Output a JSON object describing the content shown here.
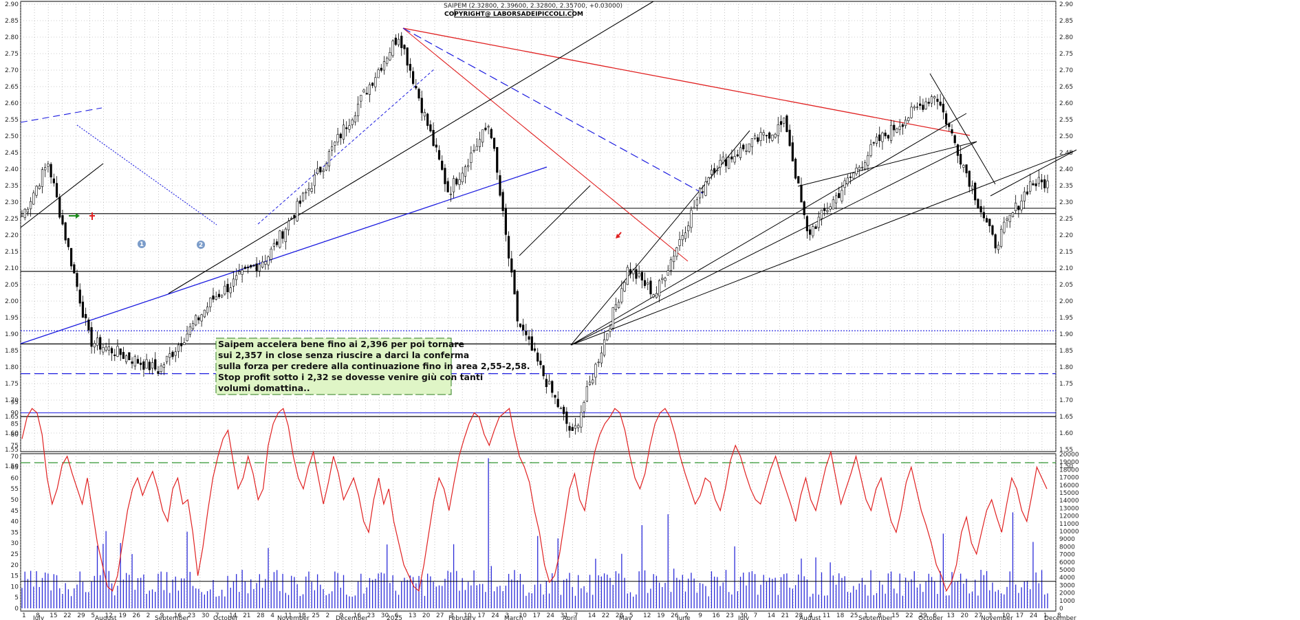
{
  "header": {
    "summary": "SAIPEM (2.32800, 2.39600, 2.32800, 2.35700, +0.03000)",
    "copyright": "COPYRIGHT@ LABORSADEIPICCOLI.COM"
  },
  "annotation": {
    "lines": [
      "Saipem accelera bene fino ai 2,396 per poi tornare",
      "sui 2,357 in close senza riuscire a darci la conferma",
      "sulla forza per credere alla continuazione fino in area 2,55-2,58.",
      "Stop profit sotto i 2,32 se dovesse venire giù con tanti",
      "volumi domattina.."
    ]
  },
  "markers": {
    "one": "1",
    "two": "2"
  },
  "colors": {
    "candle": "#000000",
    "trend_red": "#e02020",
    "trend_blue": "#1a1adf",
    "trend_black": "#000000",
    "oscillator": "#e02020",
    "volume": "#2a2ad8",
    "note_bg": "#dff5c6",
    "note_border": "#2e7d1e",
    "green_dash": "#1a8a1a",
    "grid": "#9a9a9a"
  },
  "chart_data": [
    {
      "type": "candlestick",
      "title": "SAIPEM",
      "ylim": [
        1.45,
        2.9
      ],
      "y_ticks": [
        "2.90",
        "2.85",
        "2.80",
        "2.75",
        "2.70",
        "2.65",
        "2.60",
        "2.55",
        "2.50",
        "2.45",
        "2.40",
        "2.35",
        "2.30",
        "2.25",
        "2.20",
        "2.15",
        "2.10",
        "2.05",
        "2.00",
        "1.95",
        "1.90",
        "1.85",
        "1.80",
        "1.75",
        "1.70",
        "1.65",
        "1.60",
        "1.55",
        "1.50"
      ],
      "x_tick_labels": [
        "1",
        "8",
        "15",
        "22",
        "29",
        "5",
        "12",
        "19",
        "26",
        "2",
        "9",
        "16",
        "23",
        "30",
        "7",
        "14",
        "21",
        "28",
        "4",
        "11",
        "18",
        "25",
        "2",
        "9",
        "16",
        "23",
        "30",
        "6",
        "13",
        "20",
        "27",
        "3",
        "10",
        "17",
        "24",
        "3",
        "10",
        "17",
        "24",
        "31",
        "7",
        "14",
        "22",
        "28",
        "5",
        "12",
        "19",
        "26",
        "2",
        "9",
        "16",
        "23",
        "30",
        "7",
        "14",
        "21",
        "28",
        "4",
        "11",
        "18",
        "25",
        "1",
        "8",
        "15",
        "22",
        "29",
        "6",
        "13",
        "20",
        "27",
        "3",
        "10",
        "17",
        "24",
        "1",
        "8"
      ],
      "month_labels": [
        "July",
        "August",
        "September",
        "October",
        "November",
        "December",
        "2025",
        "February",
        "March",
        "April",
        "May",
        "June",
        "July",
        "August",
        "September",
        "October",
        "November",
        "December"
      ],
      "key_points": [
        {
          "date": "2024-07-01",
          "value": 2.25
        },
        {
          "date": "2024-07-15",
          "value": 2.42
        },
        {
          "date": "2024-08-05",
          "value": 1.88
        },
        {
          "date": "2024-09-09",
          "value": 1.79
        },
        {
          "date": "2024-10-07",
          "value": 2.01
        },
        {
          "date": "2024-11-04",
          "value": 2.14
        },
        {
          "date": "2024-12-02",
          "value": 2.42
        },
        {
          "date": "2025-01-09",
          "value": 2.81
        },
        {
          "date": "2025-02-03",
          "value": 2.33
        },
        {
          "date": "2025-02-24",
          "value": 2.54
        },
        {
          "date": "2025-03-10",
          "value": 1.94
        },
        {
          "date": "2025-04-07",
          "value": 1.59
        },
        {
          "date": "2025-05-05",
          "value": 2.1
        },
        {
          "date": "2025-05-19",
          "value": 2.02
        },
        {
          "date": "2025-06-16",
          "value": 2.4
        },
        {
          "date": "2025-07-24",
          "value": 2.54
        },
        {
          "date": "2025-08-04",
          "value": 2.2
        },
        {
          "date": "2025-09-08",
          "value": 2.48
        },
        {
          "date": "2025-10-08",
          "value": 2.63
        },
        {
          "date": "2025-11-07",
          "value": 2.17
        },
        {
          "date": "2025-11-25",
          "value": 2.357
        }
      ],
      "last_bar": {
        "open": 2.328,
        "high": 2.396,
        "low": 2.328,
        "close": 2.357,
        "change": 0.03
      },
      "horizontal_levels": [
        {
          "value": 2.265,
          "style": "solid",
          "color": "black"
        },
        {
          "value": 2.09,
          "style": "solid",
          "color": "black"
        },
        {
          "value": 1.91,
          "style": "dotted",
          "color": "blue"
        },
        {
          "value": 1.87,
          "style": "solid",
          "color": "black"
        },
        {
          "value": 1.78,
          "style": "dashed",
          "color": "blue"
        },
        {
          "value": 1.65,
          "style": "solid",
          "color": "black"
        },
        {
          "value": 1.51,
          "style": "dashed",
          "color": "green"
        }
      ]
    },
    {
      "type": "line",
      "title": "Oscillator",
      "ylim": [
        0,
        100
      ],
      "y_ticks": [
        "95",
        "90",
        "85",
        "80",
        "75",
        "70",
        "65",
        "60",
        "55",
        "50",
        "45",
        "40",
        "35",
        "30",
        "25",
        "20",
        "15",
        "10",
        "5",
        "0"
      ],
      "levels": [
        90,
        15
      ],
      "series": [
        {
          "values": [
            78,
            88,
            92,
            90,
            80,
            60,
            48,
            55,
            66,
            70,
            62,
            55,
            48,
            60,
            45,
            30,
            20,
            10,
            8,
            15,
            30,
            45,
            55,
            60,
            52,
            58,
            63,
            55,
            45,
            40,
            55,
            60,
            48,
            50,
            35,
            15,
            28,
            45,
            60,
            70,
            78,
            82,
            68,
            55,
            60,
            70,
            62,
            50,
            55,
            75,
            85,
            90,
            92,
            84,
            70,
            60,
            55,
            65,
            72,
            60,
            48,
            58,
            70,
            62,
            50,
            55,
            60,
            52,
            40,
            35,
            50,
            60,
            48,
            55,
            40,
            30,
            20,
            15,
            10,
            8,
            20,
            35,
            50,
            60,
            55,
            45,
            58,
            70,
            78,
            85,
            90,
            88,
            80,
            75,
            82,
            88,
            90,
            92,
            80,
            70,
            65,
            58,
            45,
            35,
            20,
            12,
            15,
            25,
            40,
            55,
            62,
            50,
            45,
            60,
            72,
            80,
            85,
            88,
            92,
            90,
            82,
            70,
            60,
            55,
            62,
            75,
            85,
            90,
            92,
            88,
            80,
            70,
            62,
            55,
            48,
            52,
            60,
            58,
            50,
            45,
            55,
            68,
            75,
            70,
            62,
            55,
            50,
            48,
            56,
            64,
            70,
            62,
            55,
            48,
            40,
            52,
            60,
            50,
            45,
            55,
            65,
            72,
            60,
            48,
            55,
            62,
            70,
            60,
            50,
            45,
            55,
            60,
            50,
            40,
            35,
            45,
            58,
            65,
            55,
            45,
            38,
            30,
            20,
            15,
            8,
            12,
            20,
            35,
            42,
            30,
            25,
            35,
            45,
            50,
            42,
            35,
            48,
            60,
            55,
            45,
            40,
            52,
            65,
            60,
            55
          ]
        }
      ]
    },
    {
      "type": "bar",
      "title": "Volume",
      "ylim": [
        0,
        20000
      ],
      "y_ticks": [
        "20000",
        "19000",
        "18000",
        "17000",
        "16000",
        "15000",
        "14000",
        "13000",
        "12000",
        "11000",
        "10000",
        "9000",
        "8000",
        "7000",
        "6000",
        "5000",
        "4000",
        "3000",
        "2000",
        "1000",
        "0"
      ],
      "reference_level": 3500
    }
  ]
}
